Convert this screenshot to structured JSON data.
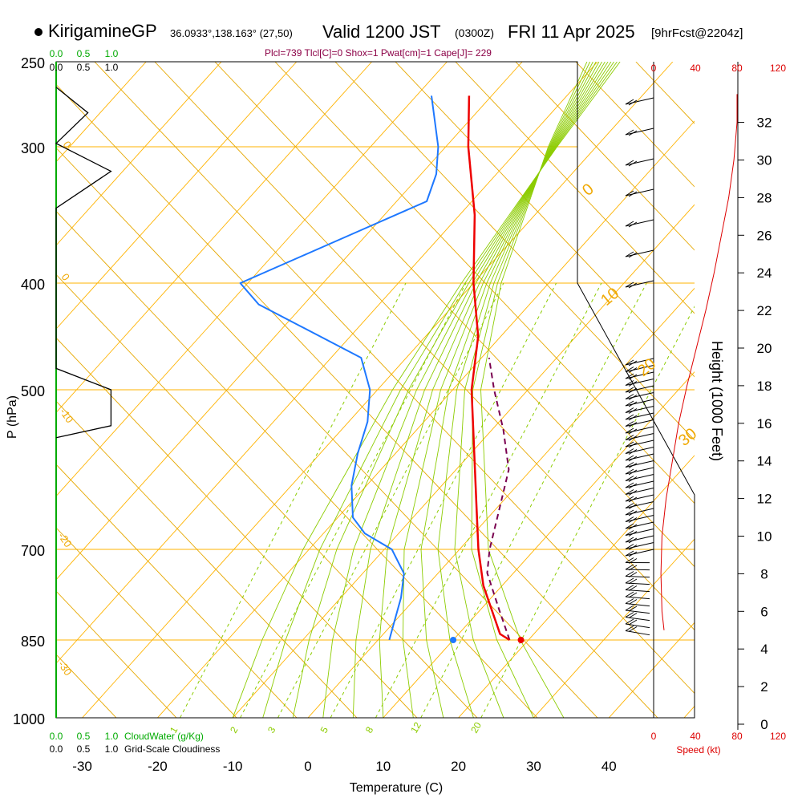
{
  "header": {
    "station": "KirigamineGP",
    "coords": "36.0933°,138.163° (27,50)",
    "valid": "Valid 1200 JST",
    "zulu": "(0300Z)",
    "date": "FRI 11 Apr 2025",
    "run": "[9hrFcst@2204z]",
    "indices": "Plcl=739 Tlcl[C]=0 Shox=1 Pwat[cm]=1 Cape[J]= 229"
  },
  "colors": {
    "isobar": "#ffb300",
    "isotherm": "#ffb300",
    "dry_adiabat": "#e6a800",
    "moist_adiabat": "#8ccc00",
    "mixing_ratio": "#8ccc00",
    "temperature": "#ee0000",
    "dewpoint": "#1e78ff",
    "parcel": "#7a0050",
    "cloud_axis": "#00aa00",
    "wind_speed": "#dd0000",
    "indices": "#8b0046"
  },
  "chart_data": {
    "type": "skew-t",
    "xlabel": "Temperature (C)",
    "ylabel": "P (hPa)",
    "right_ylabel": "Height (1000 Feet)",
    "x_ticks": [
      "-30",
      "-20",
      "-10",
      "0",
      "10",
      "20",
      "30",
      "40"
    ],
    "pressure_ticks": [
      "250",
      "300",
      "400",
      "500",
      "700",
      "850",
      "1000"
    ],
    "height_ticks": [
      "0",
      "2",
      "4",
      "6",
      "8",
      "10",
      "12",
      "14",
      "16",
      "18",
      "20",
      "22",
      "24",
      "26",
      "28",
      "30",
      "32"
    ],
    "dry_adiabat_labels": [
      "0",
      "10",
      "20",
      "30"
    ],
    "isotherm_labels": [
      "0",
      "-10",
      "-20",
      "-30"
    ],
    "mixing_ratio_labels": [
      "1",
      "2",
      "3",
      "5",
      "8",
      "12",
      "20"
    ],
    "cloudwater_ticks": [
      "0.0",
      "0.5",
      "1.0"
    ],
    "cloudiness_ticks": [
      "0.0",
      "0.5",
      "1.0"
    ],
    "cloudwater_label": "CloudWater (g/Kg)",
    "cloudiness_label": "Grid-Scale Cloudiness",
    "speed_ticks": [
      "0",
      "40",
      "80",
      "120"
    ],
    "speed_label": "Speed (kt)",
    "temperature_profile": [
      {
        "p": 850,
        "t": 17.5
      },
      {
        "p": 840,
        "t": 15.5
      },
      {
        "p": 820,
        "t": 13.5
      },
      {
        "p": 790,
        "t": 10.5
      },
      {
        "p": 760,
        "t": 7.5
      },
      {
        "p": 730,
        "t": 5.0
      },
      {
        "p": 700,
        "t": 2.5
      },
      {
        "p": 650,
        "t": -2.5
      },
      {
        "p": 600,
        "t": -7.5
      },
      {
        "p": 550,
        "t": -12.5
      },
      {
        "p": 500,
        "t": -17.5
      },
      {
        "p": 450,
        "t": -23.0
      },
      {
        "p": 400,
        "t": -30.0
      },
      {
        "p": 350,
        "t": -38.0
      },
      {
        "p": 300,
        "t": -47.0
      },
      {
        "p": 270,
        "t": -53.0
      }
    ],
    "dewpoint_profile": [
      {
        "p": 850,
        "t": 1.5
      },
      {
        "p": 820,
        "t": 0.0
      },
      {
        "p": 780,
        "t": -2.0
      },
      {
        "p": 740,
        "t": -4.5
      },
      {
        "p": 700,
        "t": -9.0
      },
      {
        "p": 680,
        "t": -14.5
      },
      {
        "p": 660,
        "t": -18.0
      },
      {
        "p": 620,
        "t": -22.0
      },
      {
        "p": 580,
        "t": -25.0
      },
      {
        "p": 540,
        "t": -27.5
      },
      {
        "p": 500,
        "t": -31.0
      },
      {
        "p": 470,
        "t": -36.0
      },
      {
        "p": 440,
        "t": -48.0
      },
      {
        "p": 420,
        "t": -56.0
      },
      {
        "p": 400,
        "t": -61.0
      },
      {
        "p": 380,
        "t": -56.0
      },
      {
        "p": 360,
        "t": -51.0
      },
      {
        "p": 340,
        "t": -46.0
      },
      {
        "p": 320,
        "t": -48.0
      },
      {
        "p": 300,
        "t": -51.0
      },
      {
        "p": 270,
        "t": -58.0
      }
    ],
    "parcel_profile": [
      {
        "p": 850,
        "t": 17.5
      },
      {
        "p": 800,
        "t": 12.5
      },
      {
        "p": 739,
        "t": 6.5
      },
      {
        "p": 700,
        "t": 4.0
      },
      {
        "p": 650,
        "t": 0.5
      },
      {
        "p": 600,
        "t": -3.0
      },
      {
        "p": 550,
        "t": -8.5
      },
      {
        "p": 500,
        "t": -14.5
      },
      {
        "p": 470,
        "t": -19.0
      }
    ],
    "surface_temperature": {
      "p": 850,
      "t": 19.0
    },
    "surface_dewpoint": {
      "p": 850,
      "t": 10.0
    },
    "wind_speed_profile_kt": [
      {
        "h": 5,
        "v": 10
      },
      {
        "h": 6,
        "v": 8
      },
      {
        "h": 8,
        "v": 7
      },
      {
        "h": 10,
        "v": 8
      },
      {
        "h": 12,
        "v": 12
      },
      {
        "h": 14,
        "v": 18
      },
      {
        "h": 16,
        "v": 24
      },
      {
        "h": 18,
        "v": 32
      },
      {
        "h": 20,
        "v": 41
      },
      {
        "h": 22,
        "v": 50
      },
      {
        "h": 24,
        "v": 58
      },
      {
        "h": 26,
        "v": 65
      },
      {
        "h": 28,
        "v": 72
      },
      {
        "h": 30,
        "v": 77
      },
      {
        "h": 32,
        "v": 80
      },
      {
        "h": 33.5,
        "v": 80
      }
    ],
    "cloudiness_profile": [
      {
        "p": 265,
        "v": 0.0
      },
      {
        "p": 280,
        "v": 0.55
      },
      {
        "p": 298,
        "v": 0.0
      },
      {
        "p": 318,
        "v": 0.95
      },
      {
        "p": 345,
        "v": 0.0
      },
      {
        "p": 480,
        "v": 0.0
      },
      {
        "p": 500,
        "v": 0.95
      },
      {
        "p": 545,
        "v": 0.95
      },
      {
        "p": 560,
        "v": 0.0
      }
    ]
  }
}
